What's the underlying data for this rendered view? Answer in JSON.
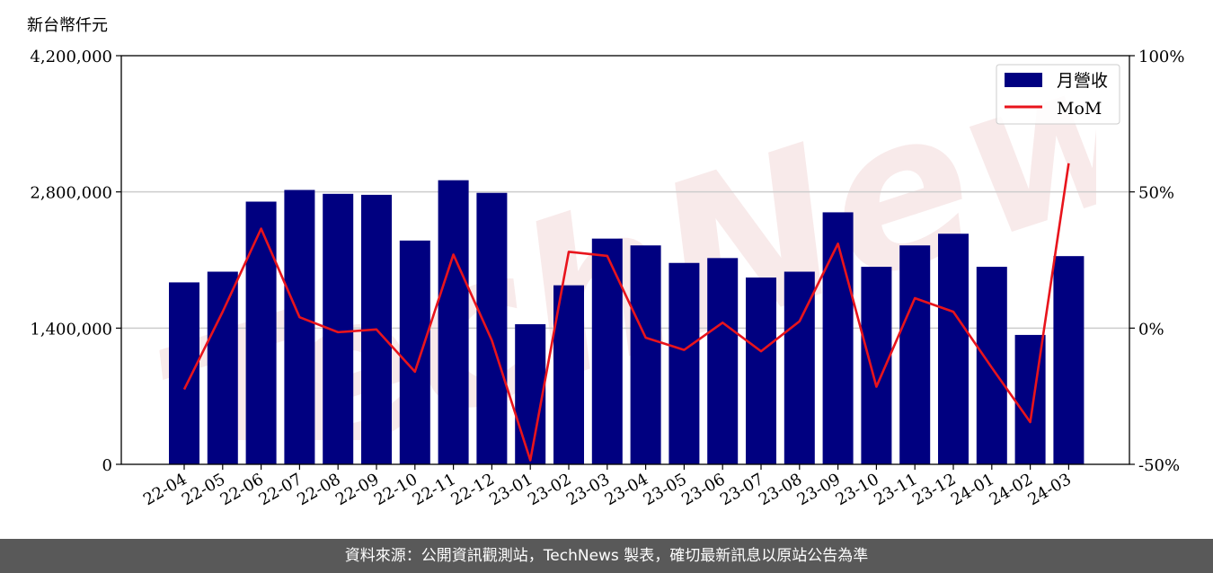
{
  "unit_label": "新台幣仟元",
  "footer": "資料來源：公開資訊觀測站，TechNews 製表，確切最新訊息以原站公告為準",
  "watermark": "TechNews",
  "colors": {
    "bar": "#000080",
    "line": "#e8141c",
    "footer_bg": "#595959",
    "grid": "#cccccc"
  },
  "chart_data": {
    "type": "bar",
    "categories": [
      "22-04",
      "22-05",
      "22-06",
      "22-07",
      "22-08",
      "22-09",
      "22-10",
      "22-11",
      "22-12",
      "23-01",
      "23-02",
      "23-03",
      "23-04",
      "23-05",
      "23-06",
      "23-07",
      "23-08",
      "23-09",
      "23-10",
      "23-11",
      "23-12",
      "24-01",
      "24-02",
      "24-03"
    ],
    "series": [
      {
        "name": "月營收",
        "type": "bar",
        "axis": "left",
        "values": [
          1870000,
          1980000,
          2700000,
          2820000,
          2780000,
          2770000,
          2300000,
          2920000,
          2790000,
          1440000,
          1840000,
          2320000,
          2250000,
          2070000,
          2120000,
          1920000,
          1980000,
          2590000,
          2030000,
          2250000,
          2370000,
          2030000,
          1330000,
          2140000
        ]
      },
      {
        "name": "MoM",
        "type": "line",
        "axis": "right",
        "values": [
          -22.5,
          6.0,
          36.5,
          4.0,
          -1.5,
          -0.5,
          -16.0,
          27.0,
          -4.5,
          -48.5,
          28.0,
          26.5,
          -3.5,
          -8.0,
          2.0,
          -8.5,
          2.5,
          31.0,
          -21.5,
          11.0,
          6.0,
          -14.5,
          -34.5,
          60.5
        ]
      }
    ],
    "left_axis": {
      "ylim": [
        0,
        4200000
      ],
      "ticks": [
        "0",
        "1,400,000",
        "2,800,000",
        "4,200,000"
      ],
      "tick_values": [
        0,
        1400000,
        2800000,
        4200000
      ]
    },
    "right_axis": {
      "ylim": [
        -50,
        100
      ],
      "ticks": [
        "-50%",
        "0%",
        "50%",
        "100%"
      ],
      "tick_values": [
        -50,
        0,
        50,
        100
      ]
    },
    "grid": true,
    "legend": "top-right"
  }
}
